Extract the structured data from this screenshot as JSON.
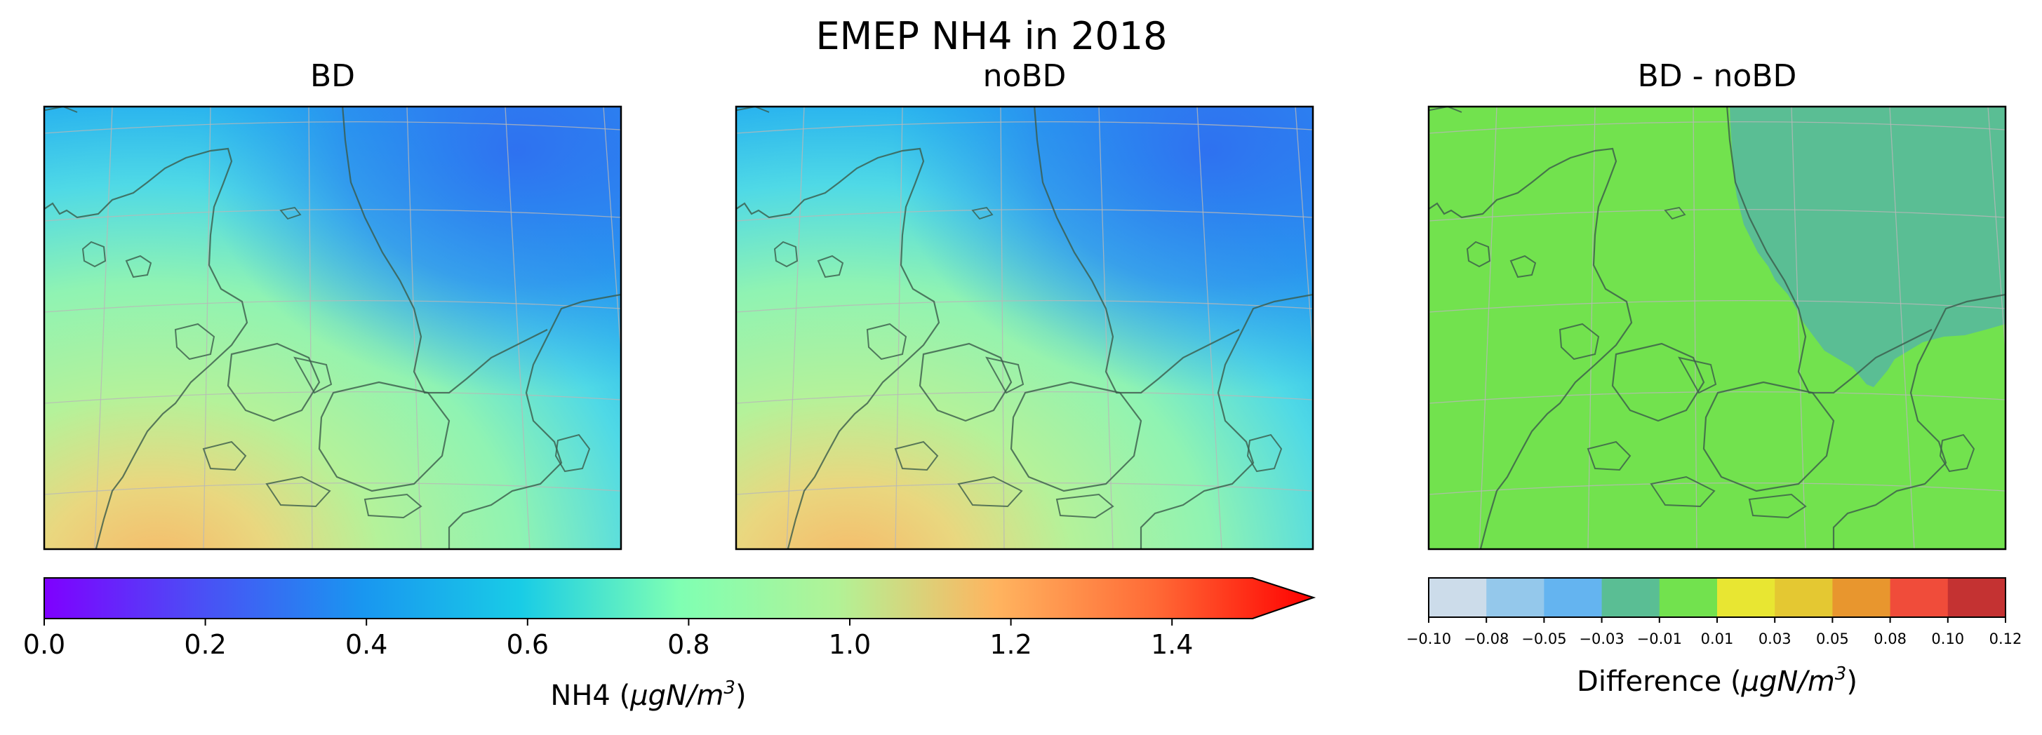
{
  "figure": {
    "title": "EMEP NH4 in 2018"
  },
  "chart_data": [
    {
      "type": "heatmap",
      "title": "BD",
      "field": "NH4 concentration map (Denmark region)",
      "colormap": "rainbow",
      "vmin": 0.0,
      "vmax": 1.5,
      "approx_range": [
        0.3,
        1.2
      ],
      "grid": true,
      "coastlines": true
    },
    {
      "type": "heatmap",
      "title": "noBD",
      "field": "NH4 concentration map (Denmark region)",
      "colormap": "rainbow",
      "vmin": 0.0,
      "vmax": 1.5,
      "approx_range": [
        0.3,
        1.2
      ],
      "grid": true,
      "coastlines": true
    },
    {
      "type": "heatmap",
      "title": "BD - noBD",
      "field": "difference map",
      "dominant_value_bin": [
        -0.01,
        0.01
      ],
      "secondary_value_bin": [
        -0.03,
        -0.01
      ],
      "grid": true,
      "coastlines": true
    }
  ],
  "colorbar_main": {
    "label_prefix": "NH4 (",
    "label_unit": "μgN/m",
    "label_exp": "3",
    "label_suffix": ")",
    "range": [
      0.0,
      1.5
    ],
    "extend": "max",
    "ticks": [
      "0.0",
      "0.2",
      "0.4",
      "0.6",
      "0.8",
      "1.0",
      "1.2",
      "1.4"
    ],
    "tick_values": [
      0.0,
      0.2,
      0.4,
      0.6,
      0.8,
      1.0,
      1.2,
      1.4
    ]
  },
  "colorbar_diff": {
    "label_prefix": "Difference (",
    "label_unit": "μgN/m",
    "label_exp": "3",
    "label_suffix": ")",
    "boundaries": [
      "−0.10",
      "−0.08",
      "−0.05",
      "−0.03",
      "−0.01",
      "0.01",
      "0.03",
      "0.05",
      "0.08",
      "0.10",
      "0.12"
    ],
    "colors": [
      "#ccdcea",
      "#94c8eb",
      "#64b4f0",
      "#5abe94",
      "#72e24e",
      "#e8e632",
      "#e4c832",
      "#e8962e",
      "#f04c3a",
      "#c43232"
    ]
  },
  "colors": {
    "land_diff": "#72e24e",
    "sea_diff": "#5abe94",
    "coast": "#3a5a4a",
    "grid": "#b8b8b8"
  }
}
